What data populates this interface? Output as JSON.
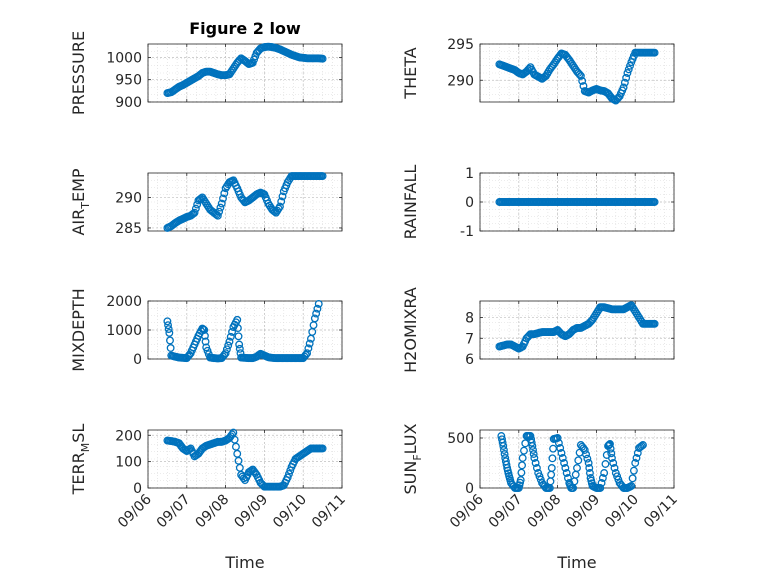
{
  "figure": {
    "title": "Figure 2 low",
    "marker_color": "#0072BD"
  },
  "chart_data": [
    {
      "id": "pressure",
      "type": "scatter",
      "col": 0,
      "row": 0,
      "title": "Figure 2 low",
      "ylabel": "PRESSURE",
      "xlim": [
        0,
        5
      ],
      "ylim": [
        900,
        1030
      ],
      "yticks": [
        900,
        950,
        1000
      ],
      "ytick_labels": [
        "900",
        "950",
        "1000"
      ],
      "xticks": [
        0,
        1,
        2,
        3,
        4,
        5
      ],
      "grid": true,
      "minor_grid": true,
      "x": [
        0.5,
        0.6,
        0.7,
        0.8,
        0.9,
        1.0,
        1.1,
        1.2,
        1.3,
        1.4,
        1.5,
        1.6,
        1.7,
        1.8,
        1.9,
        2.0,
        2.1,
        2.2,
        2.3,
        2.4,
        2.5,
        2.6,
        2.7,
        2.8,
        2.9,
        3.0,
        3.1,
        3.2,
        3.3,
        3.4,
        3.5,
        3.6,
        3.7,
        3.8,
        3.9,
        4.0,
        4.1,
        4.2,
        4.3,
        4.4,
        4.5
      ],
      "y": [
        920,
        922,
        928,
        934,
        938,
        943,
        948,
        953,
        958,
        965,
        968,
        968,
        965,
        962,
        960,
        960,
        962,
        975,
        988,
        998,
        992,
        985,
        988,
        1010,
        1020,
        1023,
        1024,
        1023,
        1021,
        1018,
        1014,
        1010,
        1006,
        1003,
        1000,
        999,
        998,
        998,
        998,
        998,
        997
      ]
    },
    {
      "id": "theta",
      "type": "scatter",
      "col": 1,
      "row": 0,
      "ylabel": "THETA",
      "xlim": [
        0,
        5
      ],
      "ylim": [
        287,
        295
      ],
      "yticks": [
        290,
        295
      ],
      "ytick_labels": [
        "290",
        "295"
      ],
      "xticks": [
        0,
        1,
        2,
        3,
        4,
        5
      ],
      "grid": true,
      "minor_grid": true,
      "x": [
        0.5,
        0.6,
        0.7,
        0.8,
        0.9,
        1.0,
        1.1,
        1.2,
        1.3,
        1.4,
        1.5,
        1.6,
        1.7,
        1.8,
        1.9,
        2.0,
        2.1,
        2.2,
        2.3,
        2.4,
        2.5,
        2.6,
        2.7,
        2.8,
        2.9,
        3.0,
        3.1,
        3.2,
        3.3,
        3.4,
        3.5,
        3.6,
        3.7,
        3.8,
        3.9,
        4.0,
        4.1,
        4.2,
        4.3,
        4.4,
        4.5
      ],
      "y": [
        292.2,
        292.0,
        291.8,
        291.6,
        291.4,
        291.0,
        290.8,
        291.2,
        291.8,
        290.8,
        290.5,
        290.2,
        290.6,
        291.5,
        292.2,
        293.0,
        293.7,
        293.5,
        292.8,
        292.0,
        291.2,
        290.6,
        288.5,
        288.3,
        288.6,
        288.8,
        288.6,
        288.5,
        288.2,
        287.5,
        287.2,
        287.8,
        289.0,
        291.0,
        292.5,
        293.8,
        293.8,
        293.8,
        293.8,
        293.8,
        293.8
      ]
    },
    {
      "id": "air_temp",
      "type": "scatter",
      "col": 0,
      "row": 1,
      "ylabel": "AIR",
      "ylabel_sub": "T",
      "ylabel_rest": "EMP",
      "xlim": [
        0,
        5
      ],
      "ylim": [
        284.5,
        294
      ],
      "yticks": [
        285,
        290
      ],
      "ytick_labels": [
        "285",
        "290"
      ],
      "xticks": [
        0,
        1,
        2,
        3,
        4,
        5
      ],
      "grid": true,
      "minor_grid": true,
      "x": [
        0.5,
        0.6,
        0.7,
        0.8,
        0.9,
        1.0,
        1.1,
        1.2,
        1.3,
        1.4,
        1.5,
        1.6,
        1.7,
        1.8,
        1.9,
        2.0,
        2.1,
        2.2,
        2.3,
        2.4,
        2.5,
        2.6,
        2.7,
        2.8,
        2.9,
        3.0,
        3.1,
        3.2,
        3.3,
        3.4,
        3.5,
        3.6,
        3.7,
        3.8,
        3.9,
        4.0,
        4.1,
        4.2,
        4.3,
        4.4,
        4.5
      ],
      "y": [
        285.0,
        285.3,
        285.8,
        286.2,
        286.5,
        286.8,
        287.0,
        287.5,
        289.5,
        290.0,
        289.0,
        288.0,
        287.5,
        287.0,
        289.0,
        291.5,
        292.5,
        292.8,
        291.5,
        290.0,
        289.2,
        289.5,
        290.0,
        290.5,
        290.8,
        290.5,
        289.0,
        288.0,
        287.5,
        288.5,
        291.0,
        292.5,
        293.5,
        293.5,
        293.5,
        293.5,
        293.5,
        293.5,
        293.5,
        293.5,
        293.5
      ]
    },
    {
      "id": "rainfall",
      "type": "scatter",
      "col": 1,
      "row": 1,
      "ylabel": "RAINFALL",
      "xlim": [
        0,
        5
      ],
      "ylim": [
        -1,
        1
      ],
      "yticks": [
        -1,
        0,
        1
      ],
      "ytick_labels": [
        "-1",
        "0",
        "1"
      ],
      "xticks": [
        0,
        1,
        2,
        3,
        4,
        5
      ],
      "grid": true,
      "minor_grid": true,
      "x": [
        0.5,
        0.6,
        0.7,
        0.8,
        0.9,
        1.0,
        1.1,
        1.2,
        1.3,
        1.4,
        1.5,
        1.6,
        1.7,
        1.8,
        1.9,
        2.0,
        2.1,
        2.2,
        2.3,
        2.4,
        2.5,
        2.6,
        2.7,
        2.8,
        2.9,
        3.0,
        3.1,
        3.2,
        3.3,
        3.4,
        3.5,
        3.6,
        3.7,
        3.8,
        3.9,
        4.0,
        4.1,
        4.2,
        4.3,
        4.4,
        4.5
      ],
      "y": [
        0,
        0,
        0,
        0,
        0,
        0,
        0,
        0,
        0,
        0,
        0,
        0,
        0,
        0,
        0,
        0,
        0,
        0,
        0,
        0,
        0,
        0,
        0,
        0,
        0,
        0,
        0,
        0,
        0,
        0,
        0,
        0,
        0,
        0,
        0,
        0,
        0,
        0,
        0,
        0,
        0
      ]
    },
    {
      "id": "mixdepth",
      "type": "scatter",
      "col": 0,
      "row": 2,
      "ylabel": "MIXDEPTH",
      "xlim": [
        0,
        5
      ],
      "ylim": [
        0,
        2000
      ],
      "yticks": [
        0,
        1000,
        2000
      ],
      "ytick_labels": [
        "0",
        "1000",
        "2000"
      ],
      "xticks": [
        0,
        1,
        2,
        3,
        4,
        5
      ],
      "grid": true,
      "minor_grid": true,
      "x": [
        0.5,
        0.55,
        0.6,
        0.7,
        0.8,
        0.9,
        1.0,
        1.1,
        1.2,
        1.3,
        1.4,
        1.45,
        1.5,
        1.6,
        1.7,
        1.8,
        1.9,
        2.0,
        2.1,
        2.2,
        2.3,
        2.35,
        2.4,
        2.5,
        2.6,
        2.7,
        2.8,
        2.9,
        3.0,
        3.1,
        3.2,
        3.3,
        3.4,
        3.5,
        3.6,
        3.7,
        3.8,
        3.9,
        4.0,
        4.1,
        4.2,
        4.3,
        4.4
      ],
      "y": [
        1300,
        900,
        120,
        80,
        50,
        40,
        30,
        200,
        500,
        800,
        1050,
        1000,
        400,
        50,
        30,
        20,
        30,
        200,
        600,
        1100,
        1350,
        500,
        50,
        40,
        30,
        30,
        80,
        180,
        120,
        60,
        40,
        30,
        30,
        30,
        30,
        30,
        30,
        30,
        30,
        200,
        700,
        1400,
        1900
      ]
    },
    {
      "id": "h2omixra",
      "type": "scatter",
      "col": 1,
      "row": 2,
      "ylabel": "H2OMIXRA",
      "xlim": [
        0,
        5
      ],
      "ylim": [
        6,
        8.8
      ],
      "yticks": [
        6,
        7,
        8
      ],
      "ytick_labels": [
        "6",
        "7",
        "8"
      ],
      "xticks": [
        0,
        1,
        2,
        3,
        4,
        5
      ],
      "grid": true,
      "minor_grid": true,
      "x": [
        0.5,
        0.6,
        0.7,
        0.8,
        0.9,
        1.0,
        1.1,
        1.2,
        1.3,
        1.4,
        1.5,
        1.6,
        1.7,
        1.8,
        1.9,
        2.0,
        2.1,
        2.2,
        2.3,
        2.4,
        2.5,
        2.6,
        2.7,
        2.8,
        2.9,
        3.0,
        3.1,
        3.2,
        3.3,
        3.4,
        3.5,
        3.6,
        3.7,
        3.8,
        3.9,
        4.0,
        4.1,
        4.2,
        4.3,
        4.4,
        4.5
      ],
      "y": [
        6.6,
        6.65,
        6.7,
        6.7,
        6.6,
        6.5,
        6.6,
        7.0,
        7.2,
        7.2,
        7.25,
        7.3,
        7.3,
        7.3,
        7.3,
        7.4,
        7.2,
        7.1,
        7.2,
        7.4,
        7.5,
        7.5,
        7.6,
        7.7,
        7.9,
        8.2,
        8.5,
        8.5,
        8.45,
        8.4,
        8.4,
        8.4,
        8.4,
        8.5,
        8.6,
        8.3,
        8.0,
        7.7,
        7.7,
        7.7,
        7.7
      ]
    },
    {
      "id": "terr_msl",
      "type": "scatter",
      "col": 0,
      "row": 3,
      "ylabel": "TERR",
      "ylabel_sub": "M",
      "ylabel_rest": "SL",
      "xlim": [
        0,
        5
      ],
      "ylim": [
        0,
        220
      ],
      "yticks": [
        0,
        100,
        200
      ],
      "ytick_labels": [
        "0",
        "100",
        "200"
      ],
      "xticks": [
        0,
        1,
        2,
        3,
        4,
        5
      ],
      "xtick_labels": [
        "09/06",
        "09/07",
        "09/08",
        "09/09",
        "09/10",
        "09/11"
      ],
      "xlabel": "Time",
      "grid": true,
      "minor_grid": true,
      "x": [
        0.5,
        0.6,
        0.7,
        0.8,
        0.9,
        1.0,
        1.1,
        1.2,
        1.3,
        1.4,
        1.5,
        1.6,
        1.7,
        1.8,
        1.9,
        2.0,
        2.1,
        2.2,
        2.3,
        2.4,
        2.5,
        2.6,
        2.7,
        2.8,
        2.9,
        3.0,
        3.1,
        3.2,
        3.3,
        3.4,
        3.5,
        3.6,
        3.7,
        3.8,
        3.9,
        4.0,
        4.1,
        4.2,
        4.3,
        4.4,
        4.5
      ],
      "y": [
        180,
        178,
        175,
        170,
        150,
        140,
        150,
        120,
        130,
        150,
        160,
        165,
        170,
        175,
        175,
        180,
        190,
        210,
        130,
        50,
        30,
        60,
        70,
        50,
        20,
        5,
        5,
        5,
        5,
        5,
        10,
        40,
        80,
        110,
        120,
        130,
        140,
        150,
        150,
        150,
        150
      ]
    },
    {
      "id": "sun_flux",
      "type": "scatter",
      "col": 1,
      "row": 3,
      "ylabel": "SUN",
      "ylabel_sub": "F",
      "ylabel_rest": "LUX",
      "xlim": [
        0,
        5
      ],
      "ylim": [
        0,
        580
      ],
      "yticks": [
        0,
        500
      ],
      "ytick_labels": [
        "0",
        "500"
      ],
      "xticks": [
        0,
        1,
        2,
        3,
        4,
        5
      ],
      "xtick_labels": [
        "09/06",
        "09/07",
        "09/08",
        "09/09",
        "09/10",
        "09/11"
      ],
      "xlabel": "Time",
      "grid": true,
      "minor_grid": true,
      "x": [
        0.55,
        0.6,
        0.65,
        0.7,
        0.75,
        0.8,
        0.9,
        1.0,
        1.05,
        1.1,
        1.2,
        1.3,
        1.35,
        1.4,
        1.5,
        1.6,
        1.7,
        1.8,
        1.85,
        1.9,
        2.0,
        2.1,
        2.2,
        2.3,
        2.35,
        2.4,
        2.5,
        2.6,
        2.7,
        2.8,
        2.85,
        2.9,
        3.0,
        3.1,
        3.2,
        3.3,
        3.35,
        3.4,
        3.5,
        3.6,
        3.7,
        3.8,
        3.9,
        4.0,
        4.1,
        4.2
      ],
      "y": [
        520,
        420,
        300,
        200,
        120,
        50,
        0,
        0,
        80,
        300,
        520,
        520,
        420,
        300,
        150,
        50,
        0,
        0,
        200,
        490,
        500,
        350,
        200,
        50,
        0,
        0,
        200,
        430,
        380,
        250,
        100,
        20,
        0,
        0,
        150,
        420,
        440,
        300,
        150,
        50,
        0,
        0,
        20,
        250,
        400,
        430
      ]
    }
  ]
}
